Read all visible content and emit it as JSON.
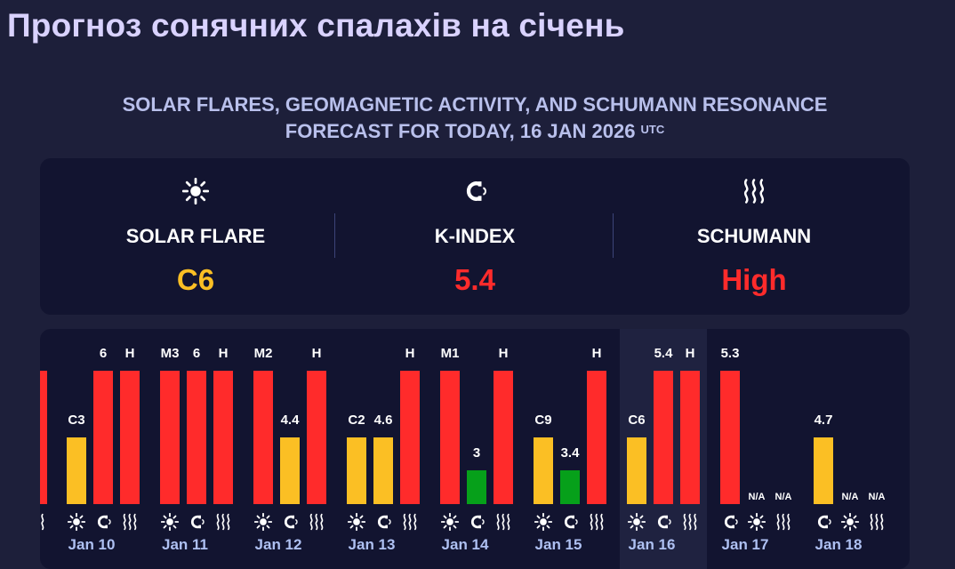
{
  "page_title": "Прогноз сонячних спалахів на січень",
  "subtitle": {
    "line1": "SOLAR FLARES, GEOMAGNETIC ACTIVITY, AND SCHUMANN RESONANCE",
    "line2": "FORECAST FOR TODAY, 16 JAN 2026",
    "tz": "UTC"
  },
  "colors": {
    "high": "#ff2b2b",
    "moderate": "#fbbf24",
    "low": "#06a01a",
    "flare_value": "#fbbf24"
  },
  "summary": {
    "solar_flare": {
      "label": "SOLAR FLARE",
      "value": "C6",
      "icon": "sun-icon"
    },
    "k_index": {
      "label": "K-INDEX",
      "value": "5.4",
      "icon": "magnet-icon"
    },
    "schumann": {
      "label": "SCHUMANN",
      "value": "High",
      "icon": "waves-icon"
    }
  },
  "forecast": {
    "partial_day": {
      "bars": [
        {
          "label": "",
          "level": 1.0,
          "color": "red",
          "icon": "waves-icon"
        }
      ]
    },
    "days": [
      {
        "date": "Jan 10",
        "today": false,
        "bars": [
          {
            "label": "C3",
            "level": 0.5,
            "color": "yellow",
            "icon": "sun-icon"
          },
          {
            "label": "6",
            "level": 1.0,
            "color": "red",
            "icon": "magnet-icon"
          },
          {
            "label": "H",
            "level": 1.0,
            "color": "red",
            "icon": "waves-icon"
          }
        ]
      },
      {
        "date": "Jan 11",
        "today": false,
        "bars": [
          {
            "label": "M3",
            "level": 1.0,
            "color": "red",
            "icon": "sun-icon"
          },
          {
            "label": "6",
            "level": 1.0,
            "color": "red",
            "icon": "magnet-icon"
          },
          {
            "label": "H",
            "level": 1.0,
            "color": "red",
            "icon": "waves-icon"
          }
        ]
      },
      {
        "date": "Jan 12",
        "today": false,
        "bars": [
          {
            "label": "M2",
            "level": 1.0,
            "color": "red",
            "icon": "sun-icon"
          },
          {
            "label": "4.4",
            "level": 0.5,
            "color": "yellow",
            "icon": "magnet-icon"
          },
          {
            "label": "H",
            "level": 1.0,
            "color": "red",
            "icon": "waves-icon"
          }
        ]
      },
      {
        "date": "Jan 13",
        "today": false,
        "bars": [
          {
            "label": "C2",
            "level": 0.5,
            "color": "yellow",
            "icon": "sun-icon"
          },
          {
            "label": "4.6",
            "level": 0.5,
            "color": "yellow",
            "icon": "magnet-icon"
          },
          {
            "label": "H",
            "level": 1.0,
            "color": "red",
            "icon": "waves-icon"
          }
        ]
      },
      {
        "date": "Jan 14",
        "today": false,
        "bars": [
          {
            "label": "M1",
            "level": 1.0,
            "color": "red",
            "icon": "sun-icon"
          },
          {
            "label": "3",
            "level": 0.25,
            "color": "green",
            "icon": "magnet-icon"
          },
          {
            "label": "H",
            "level": 1.0,
            "color": "red",
            "icon": "waves-icon"
          }
        ]
      },
      {
        "date": "Jan 15",
        "today": false,
        "bars": [
          {
            "label": "C9",
            "level": 0.5,
            "color": "yellow",
            "icon": "sun-icon"
          },
          {
            "label": "3.4",
            "level": 0.25,
            "color": "green",
            "icon": "magnet-icon"
          },
          {
            "label": "H",
            "level": 1.0,
            "color": "red",
            "icon": "waves-icon"
          }
        ]
      },
      {
        "date": "Jan 16",
        "today": true,
        "bars": [
          {
            "label": "C6",
            "level": 0.5,
            "color": "yellow",
            "icon": "sun-icon"
          },
          {
            "label": "5.4",
            "level": 1.0,
            "color": "red",
            "icon": "magnet-icon"
          },
          {
            "label": "H",
            "level": 1.0,
            "color": "red",
            "icon": "waves-icon"
          }
        ]
      },
      {
        "date": "Jan 17",
        "today": false,
        "bars": [
          {
            "label": "5.3",
            "level": 1.0,
            "color": "red",
            "icon": "magnet-icon"
          },
          {
            "label": "N/A",
            "level": 0,
            "color": "none",
            "icon": "sun-icon"
          },
          {
            "label": "N/A",
            "level": 0,
            "color": "none",
            "icon": "waves-icon"
          }
        ]
      },
      {
        "date": "Jan 18",
        "today": false,
        "bars": [
          {
            "label": "4.7",
            "level": 0.5,
            "color": "yellow",
            "icon": "magnet-icon"
          },
          {
            "label": "N/A",
            "level": 0,
            "color": "none",
            "icon": "sun-icon"
          },
          {
            "label": "N/A",
            "level": 0,
            "color": "none",
            "icon": "waves-icon"
          }
        ]
      }
    ]
  }
}
